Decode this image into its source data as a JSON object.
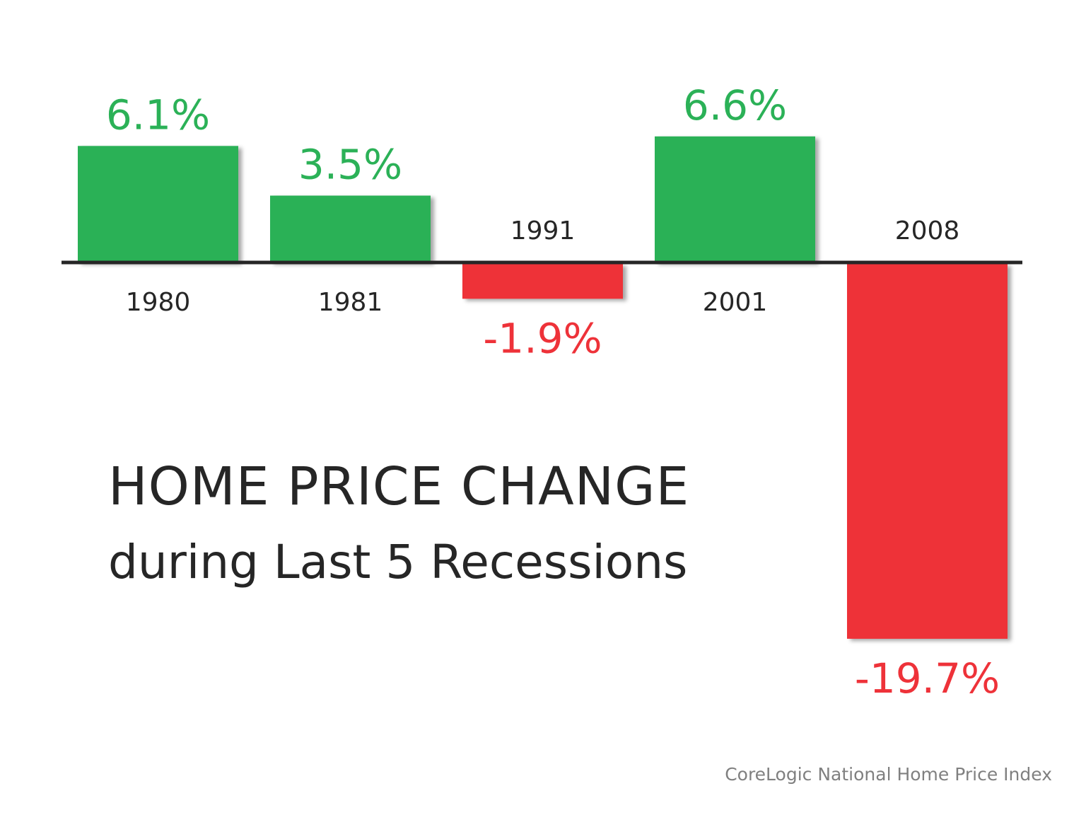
{
  "chart_data": {
    "type": "bar",
    "title": "HOME PRICE CHANGE",
    "subtitle": "during Last 5 Recessions",
    "source": "CoreLogic National Home Price Index",
    "categories": [
      "1980",
      "1981",
      "1991",
      "2001",
      "2008"
    ],
    "values": [
      6.1,
      3.5,
      -1.9,
      6.6,
      -19.7
    ],
    "data_labels": [
      "6.1%",
      "3.5%",
      "-1.9%",
      "6.6%",
      "-19.7%"
    ],
    "unit": "%",
    "grid": false,
    "axes_visible": false,
    "colors": {
      "positive": "#2bb157",
      "negative": "#ee3239",
      "axis": "#262626",
      "category_label": "#262626"
    }
  }
}
